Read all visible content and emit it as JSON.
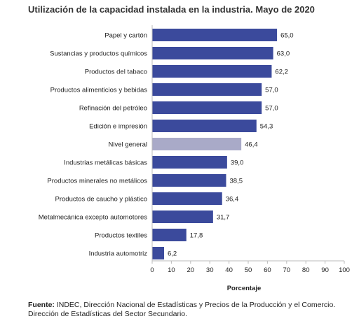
{
  "chart_data": {
    "type": "bar",
    "orientation": "horizontal",
    "title": "Utilización de la capacidad instalada en la industria. Mayo de 2020",
    "categories": [
      "Papel y cartón",
      "Sustancias y productos químicos",
      "Productos del tabaco",
      "Productos alimenticios y bebidas",
      "Refinación del petróleo",
      "Edición e impresión",
      "Nivel general",
      "Industrias metálicas básicas",
      "Productos minerales no metálicos",
      "Productos de caucho y plástico",
      "Metalmecánica excepto automotores",
      "Productos textiles",
      "Industria automotriz"
    ],
    "values": [
      65.0,
      63.0,
      62.2,
      57.0,
      57.0,
      54.3,
      46.4,
      39.0,
      38.5,
      36.4,
      31.7,
      17.8,
      6.2
    ],
    "value_labels": [
      "65,0",
      "63,0",
      "62,2",
      "57,0",
      "57,0",
      "54,3",
      "46,4",
      "39,0",
      "38,5",
      "36,4",
      "31,7",
      "17,8",
      "6,2"
    ],
    "xlabel": "Porcentaje",
    "ylabel": "",
    "xlim": [
      0,
      100
    ],
    "xticks": [
      0,
      10,
      20,
      30,
      40,
      50,
      60,
      70,
      80,
      90,
      100
    ],
    "grid": false,
    "bar_color": "#3b4a9c",
    "highlight_category": "Nivel general",
    "highlight_color": "#a9aac8"
  },
  "source": {
    "label": "Fuente:",
    "line1": " INDEC, Dirección Nacional de Estadísticas y Precios de la Producción y el Comercio.",
    "line2": "Dirección de Estadísticas del Sector Secundario."
  }
}
